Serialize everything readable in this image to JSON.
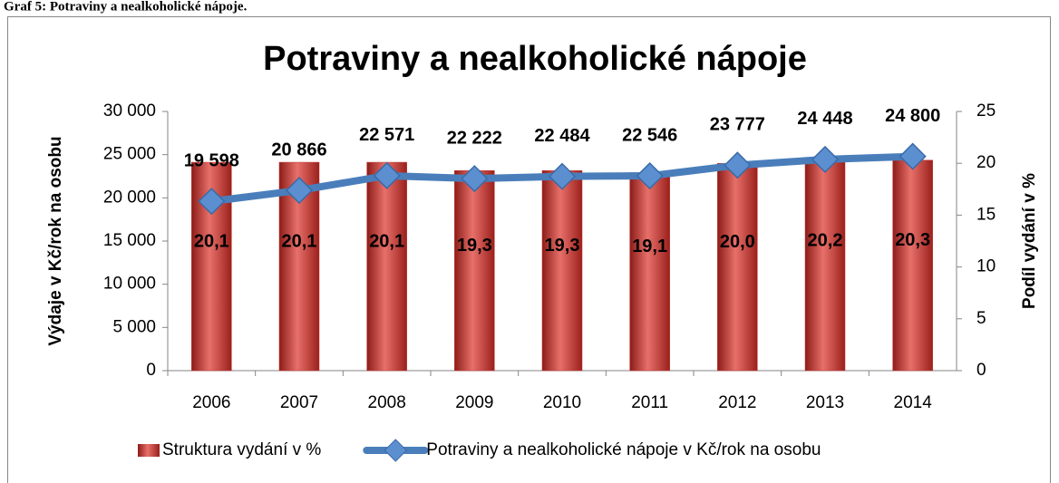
{
  "caption": "Graf 5: Potraviny a nealkoholické nápoje.",
  "chart_data": {
    "type": "bar-line",
    "title": "Potraviny a nealkoholické nápoje",
    "y_label": "Výdaje v Kč/rok na osobu",
    "y2_label": "Podíl vydání v %",
    "categories": [
      "2006",
      "2007",
      "2008",
      "2009",
      "2010",
      "2011",
      "2012",
      "2013",
      "2014"
    ],
    "series": [
      {
        "name": "Struktura vydání v %",
        "type": "bar",
        "axis": "y2",
        "color": "#c0302c",
        "values": [
          20.1,
          20.1,
          20.1,
          19.3,
          19.3,
          19.1,
          20.0,
          20.2,
          20.3
        ],
        "value_labels": [
          "20,1",
          "20,1",
          "20,1",
          "19,3",
          "19,3",
          "19,1",
          "20,0",
          "20,2",
          "20,3"
        ]
      },
      {
        "name": "Potraviny a nealkoholické nápoje v Kč/rok na osobu",
        "type": "line",
        "axis": "y",
        "color": "#4a7ebb",
        "values": [
          19598,
          20866,
          22571,
          22222,
          22484,
          22546,
          23777,
          24448,
          24800
        ],
        "value_labels": [
          "19 598",
          "20 866",
          "22 571",
          "22 222",
          "22 484",
          "22 546",
          "23 777",
          "24 448",
          "24 800"
        ]
      }
    ],
    "ylim": [
      0,
      30000
    ],
    "yticks": [
      0,
      {
        "value": 5000,
        "label": "5 000"
      },
      {
        "value": 10000,
        "label": "10 000"
      },
      {
        "value": 15000,
        "label": "15 000"
      },
      {
        "value": 20000,
        "label": "20 000"
      },
      {
        "value": 25000,
        "label": "25 000"
      },
      {
        "value": 30000,
        "label": "30 000"
      }
    ],
    "y2lim": [
      0,
      25
    ],
    "y2ticks": [
      0,
      5,
      10,
      15,
      20,
      25
    ],
    "legend": "bottom",
    "grid": false
  }
}
